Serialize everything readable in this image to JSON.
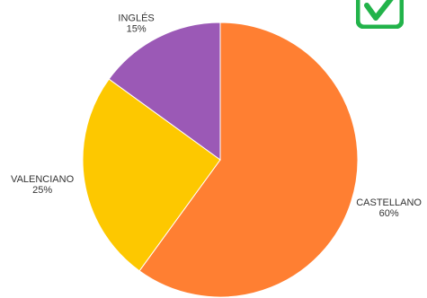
{
  "chart_data": {
    "type": "pie",
    "categories": [
      "CASTELLANO",
      "VALENCIANO",
      "INGLÉS"
    ],
    "values": [
      60,
      25,
      15
    ],
    "percent_labels": [
      "60%",
      "25%",
      "15%"
    ],
    "colors": [
      "#FF7F32",
      "#FDC800",
      "#9B59B6"
    ],
    "legend": "none"
  },
  "badge": {
    "icon": "check-box-icon",
    "color": "#22B34A"
  }
}
